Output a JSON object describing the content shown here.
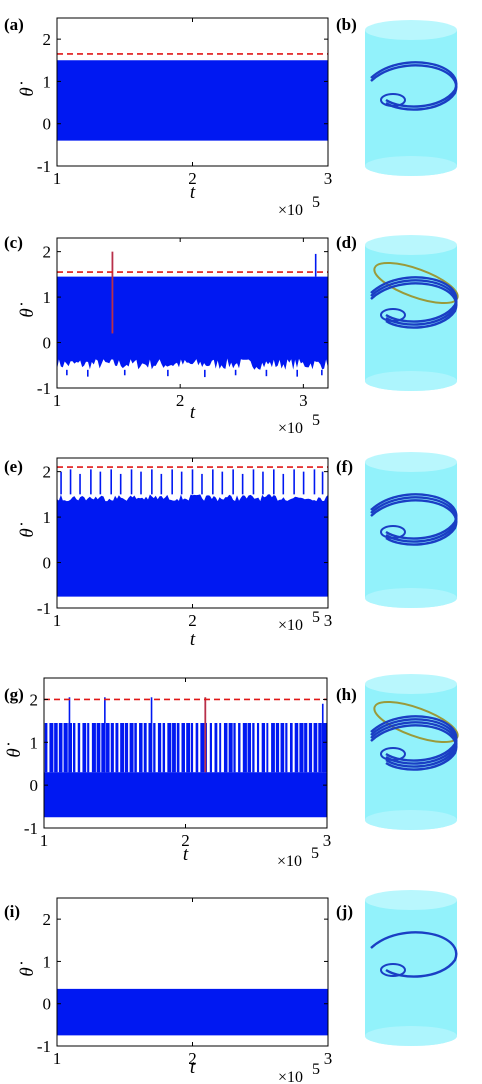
{
  "colors": {
    "signal": "#0018f2",
    "threshold": "#e01818",
    "spike": "#b8304a",
    "cylinder": "#7ff0fa",
    "cylinder_top": "#b9f7fd",
    "orbit": "#1a3fc4",
    "orbit_alt": "#9a9a3a"
  },
  "icons": [
    "cylinder-phase-portrait"
  ],
  "chart_data": [
    {
      "panel": "(a)",
      "type": "line",
      "xlabel": "t",
      "ylabel": "θ̇",
      "x_multiplier": "×10",
      "x_exponent": "5",
      "xlim": [
        1,
        3
      ],
      "ylim": [
        -1,
        2.5
      ],
      "x_ticks": [
        1,
        2,
        3
      ],
      "y_ticks": [
        -1,
        0,
        1,
        2
      ],
      "x_tick_labels": [
        "1",
        "2",
        "3"
      ],
      "y_tick_labels": [
        "-1",
        "0",
        "1",
        "2"
      ],
      "band": {
        "min": -0.4,
        "max": 1.5
      },
      "threshold": 1.65,
      "spikes_up": [],
      "spikes_down": [],
      "red_spikes": []
    },
    {
      "panel": "(c)",
      "type": "line",
      "xlabel": "t",
      "ylabel": "θ̇",
      "x_multiplier": "×10",
      "x_exponent": "5",
      "xlim": [
        1,
        3.2
      ],
      "ylim": [
        -1,
        2.3
      ],
      "x_ticks": [
        1,
        2,
        3
      ],
      "y_ticks": [
        -1,
        0,
        1,
        2
      ],
      "x_tick_labels": [
        "1",
        "2",
        "3"
      ],
      "y_tick_labels": [
        "-1",
        "0",
        "1",
        "2"
      ],
      "band": {
        "min": -0.6,
        "max": 1.45
      },
      "threshold": 1.55,
      "spikes_up": [
        [
          3.1,
          1.95
        ]
      ],
      "spikes_down": [
        [
          1.08,
          -0.72
        ],
        [
          1.25,
          -0.75
        ],
        [
          1.55,
          -0.72
        ],
        [
          1.9,
          -0.74
        ],
        [
          2.2,
          -0.76
        ],
        [
          2.45,
          -0.72
        ],
        [
          2.7,
          -0.74
        ],
        [
          2.95,
          -0.75
        ],
        [
          3.15,
          -0.72
        ]
      ],
      "red_spikes": [
        [
          1.45,
          0.2,
          2.0
        ]
      ]
    },
    {
      "panel": "(e)",
      "type": "line",
      "xlabel": "t",
      "ylabel": "θ̇",
      "x_multiplier": "×10",
      "x_exponent": "5",
      "xlim": [
        1,
        3
      ],
      "ylim": [
        -1,
        2.3
      ],
      "x_ticks": [
        1,
        2,
        3
      ],
      "y_ticks": [
        -1,
        0,
        1,
        2
      ],
      "x_tick_labels": [
        "1",
        "2",
        "3"
      ],
      "y_tick_labels": [
        "-1",
        "0",
        "1",
        "2"
      ],
      "band": {
        "min": -0.75,
        "max": 1.5
      },
      "threshold": 2.1,
      "spikes_up": [
        [
          1.03,
          2.0
        ],
        [
          1.1,
          2.05
        ],
        [
          1.17,
          1.95
        ],
        [
          1.25,
          2.05
        ],
        [
          1.32,
          2.0
        ],
        [
          1.4,
          2.05
        ],
        [
          1.47,
          1.95
        ],
        [
          1.55,
          2.05
        ],
        [
          1.62,
          2.0
        ],
        [
          1.7,
          2.05
        ],
        [
          1.77,
          1.95
        ],
        [
          1.85,
          2.05
        ],
        [
          1.92,
          2.0
        ],
        [
          2.0,
          2.05
        ],
        [
          2.07,
          1.95
        ],
        [
          2.15,
          2.05
        ],
        [
          2.22,
          2.0
        ],
        [
          2.3,
          2.05
        ],
        [
          2.37,
          1.95
        ],
        [
          2.45,
          2.05
        ],
        [
          2.52,
          2.0
        ],
        [
          2.6,
          2.05
        ],
        [
          2.67,
          1.95
        ],
        [
          2.75,
          2.05
        ],
        [
          2.82,
          2.0
        ],
        [
          2.9,
          2.05
        ],
        [
          2.96,
          2.0
        ]
      ],
      "spikes_down": [],
      "red_spikes": []
    },
    {
      "panel": "(g)",
      "type": "line",
      "xlabel": "t",
      "ylabel": "θ̇",
      "x_multiplier": "×10",
      "x_exponent": "5",
      "xlim": [
        1,
        3
      ],
      "ylim": [
        -1,
        2.5
      ],
      "x_ticks": [
        1,
        2,
        3
      ],
      "y_ticks": [
        -1,
        0,
        1,
        2
      ],
      "x_tick_labels": [
        "1",
        "2",
        "3"
      ],
      "y_tick_labels": [
        "-1",
        "0",
        "1",
        "2"
      ],
      "band": {
        "min": -0.75,
        "max": 0.3
      },
      "comb": {
        "low": 0.3,
        "high": 1.45
      },
      "threshold": 2.0,
      "spikes_up": [
        [
          1.18,
          2.05
        ],
        [
          1.43,
          2.05
        ],
        [
          1.76,
          2.05
        ],
        [
          2.97,
          1.9
        ]
      ],
      "spikes_down": [],
      "red_spikes": [
        [
          2.14,
          0.3,
          2.05
        ]
      ]
    },
    {
      "panel": "(i)",
      "type": "line",
      "xlabel": "t",
      "ylabel": "θ̇",
      "x_multiplier": "×10",
      "x_exponent": "5",
      "xlim": [
        1,
        3
      ],
      "ylim": [
        -1,
        2.5
      ],
      "x_ticks": [
        1,
        2,
        3
      ],
      "y_ticks": [
        -1,
        0,
        1,
        2
      ],
      "x_tick_labels": [
        "1",
        "2",
        "3"
      ],
      "y_tick_labels": [
        "-1",
        "0",
        "1",
        "2"
      ],
      "band": {
        "min": -0.75,
        "max": 0.35
      },
      "threshold": null,
      "spikes_up": [],
      "spikes_down": [],
      "red_spikes": []
    }
  ],
  "portraits": [
    {
      "panel": "(b)",
      "loops": 2,
      "extra_ring": false
    },
    {
      "panel": "(d)",
      "loops": 3,
      "extra_ring": true
    },
    {
      "panel": "(f)",
      "loops": 3,
      "extra_ring": false
    },
    {
      "panel": "(h)",
      "loops": 4,
      "extra_ring": true
    },
    {
      "panel": "(j)",
      "loops": 1,
      "extra_ring": false
    }
  ]
}
